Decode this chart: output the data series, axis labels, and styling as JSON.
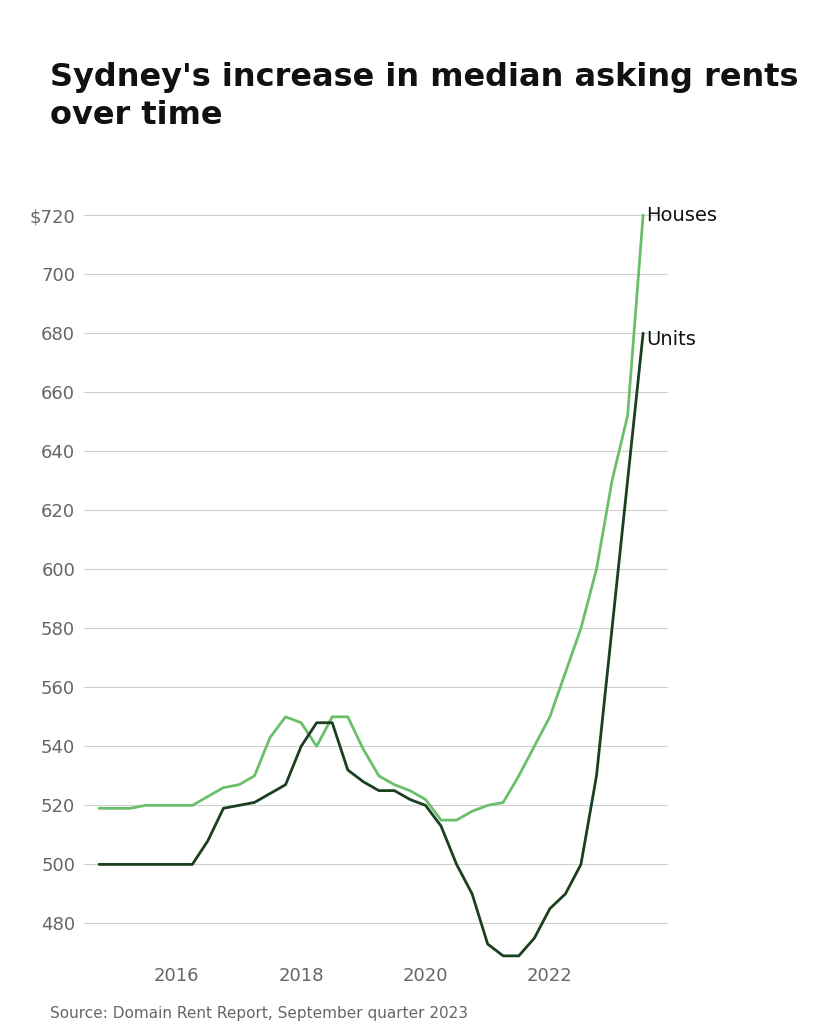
{
  "title": "Sydney's increase in median asking rents\nover time",
  "source_text": "Source: Domain Rent Report, September quarter 2023",
  "houses_label": "Houses",
  "units_label": "Units",
  "houses_color": "#6bbf6b",
  "units_color": "#1a4020",
  "background_color": "#ffffff",
  "ylim": [
    468,
    730
  ],
  "yticks": [
    480,
    500,
    520,
    540,
    560,
    580,
    600,
    620,
    640,
    660,
    680,
    700,
    720
  ],
  "ytick_top_label": "$720",
  "x_labels": [
    "2016",
    "2018",
    "2020",
    "2022"
  ],
  "houses_x": [
    2014.75,
    2015.0,
    2015.25,
    2015.5,
    2015.75,
    2016.0,
    2016.25,
    2016.5,
    2016.75,
    2017.0,
    2017.25,
    2017.5,
    2017.75,
    2018.0,
    2018.25,
    2018.5,
    2018.75,
    2019.0,
    2019.25,
    2019.5,
    2019.75,
    2020.0,
    2020.25,
    2020.5,
    2020.75,
    2021.0,
    2021.25,
    2021.5,
    2021.75,
    2022.0,
    2022.25,
    2022.5,
    2022.75,
    2023.0,
    2023.25,
    2023.5
  ],
  "houses_y": [
    519,
    519,
    519,
    520,
    520,
    520,
    520,
    523,
    526,
    527,
    530,
    543,
    550,
    548,
    540,
    550,
    550,
    539,
    530,
    527,
    525,
    522,
    515,
    515,
    518,
    520,
    521,
    530,
    540,
    550,
    565,
    580,
    600,
    630,
    652,
    720
  ],
  "units_x": [
    2014.75,
    2015.0,
    2015.25,
    2015.5,
    2015.75,
    2016.0,
    2016.25,
    2016.5,
    2016.75,
    2017.0,
    2017.25,
    2017.5,
    2017.75,
    2018.0,
    2018.25,
    2018.5,
    2018.75,
    2019.0,
    2019.25,
    2019.5,
    2019.75,
    2020.0,
    2020.25,
    2020.5,
    2020.75,
    2021.0,
    2021.25,
    2021.5,
    2021.75,
    2022.0,
    2022.25,
    2022.5,
    2022.75,
    2023.0,
    2023.25,
    2023.5
  ],
  "units_y": [
    500,
    500,
    500,
    500,
    500,
    500,
    500,
    508,
    519,
    520,
    521,
    524,
    527,
    540,
    548,
    548,
    532,
    528,
    525,
    525,
    522,
    520,
    513,
    500,
    490,
    473,
    469,
    469,
    475,
    485,
    490,
    500,
    530,
    580,
    630,
    680
  ],
  "line_width": 2.0,
  "title_fontsize": 23,
  "tick_fontsize": 13,
  "label_fontsize": 14,
  "source_fontsize": 11
}
